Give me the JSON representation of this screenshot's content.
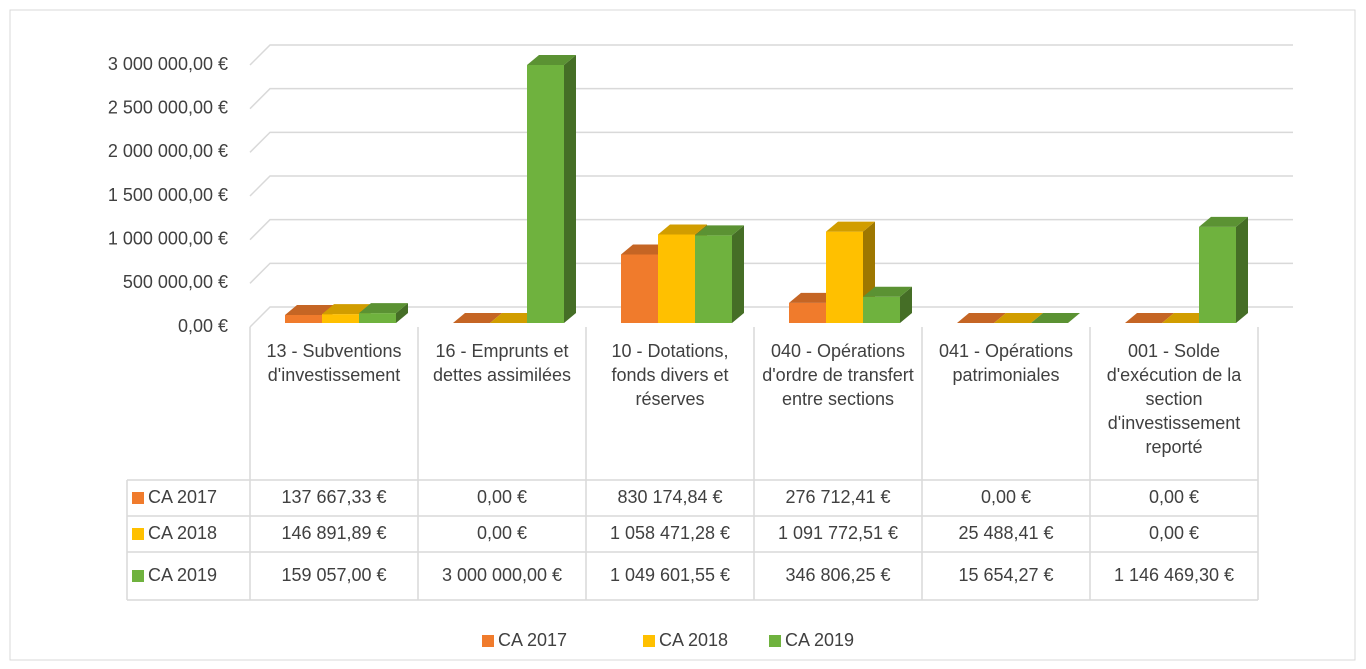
{
  "chart_data": {
    "type": "bar3d",
    "categories": [
      "13 - Subventions d'investissement",
      "16 - Emprunts et dettes assimilées",
      "10 - Dotations, fonds divers et réserves",
      "040 - Opérations d'ordre de transfert entre sections",
      "041 - Opérations patrimoniales",
      "001 - Solde d'exécution de la section d'investissement reporté"
    ],
    "series": [
      {
        "name": "CA 2017",
        "color": "#f07b2c",
        "values": [
          137667.33,
          0,
          830174.84,
          276712.41,
          0,
          0
        ],
        "value_labels": [
          "137 667,33 €",
          "0,00 €",
          "830 174,84 €",
          "276 712,41 €",
          "0,00 €",
          "0,00 €"
        ]
      },
      {
        "name": "CA 2018",
        "color": "#ffc000",
        "values": [
          146891.89,
          0,
          1058471.28,
          1091772.51,
          25488.41,
          0
        ],
        "value_labels": [
          "146 891,89 €",
          "0,00 €",
          "1 058 471,28 €",
          "1 091 772,51 €",
          "25 488,41 €",
          "0,00 €"
        ]
      },
      {
        "name": "CA 2019",
        "color": "#6fb23e",
        "values": [
          159057,
          3000000,
          1049601.55,
          346806.25,
          15654.27,
          1146469.3
        ],
        "value_labels": [
          "159 057,00 €",
          "3 000 000,00 €",
          "1 049 601,55 €",
          "346 806,25 €",
          "15 654,27 €",
          "1 146 469,30 €"
        ]
      }
    ],
    "ylim": [
      0,
      3000000
    ],
    "yticks": [
      {
        "value": 0,
        "label": "0,00 €"
      },
      {
        "value": 500000,
        "label": "500 000,00 €"
      },
      {
        "value": 1000000,
        "label": "1 000 000,00 €"
      },
      {
        "value": 1500000,
        "label": "1 500 000,00 €"
      },
      {
        "value": 2000000,
        "label": "2 000 000,00 €"
      },
      {
        "value": 2500000,
        "label": "2 500 000,00 €"
      },
      {
        "value": 3000000,
        "label": "3 000 000,00 €"
      }
    ],
    "grid": true,
    "legend": "bottom"
  }
}
